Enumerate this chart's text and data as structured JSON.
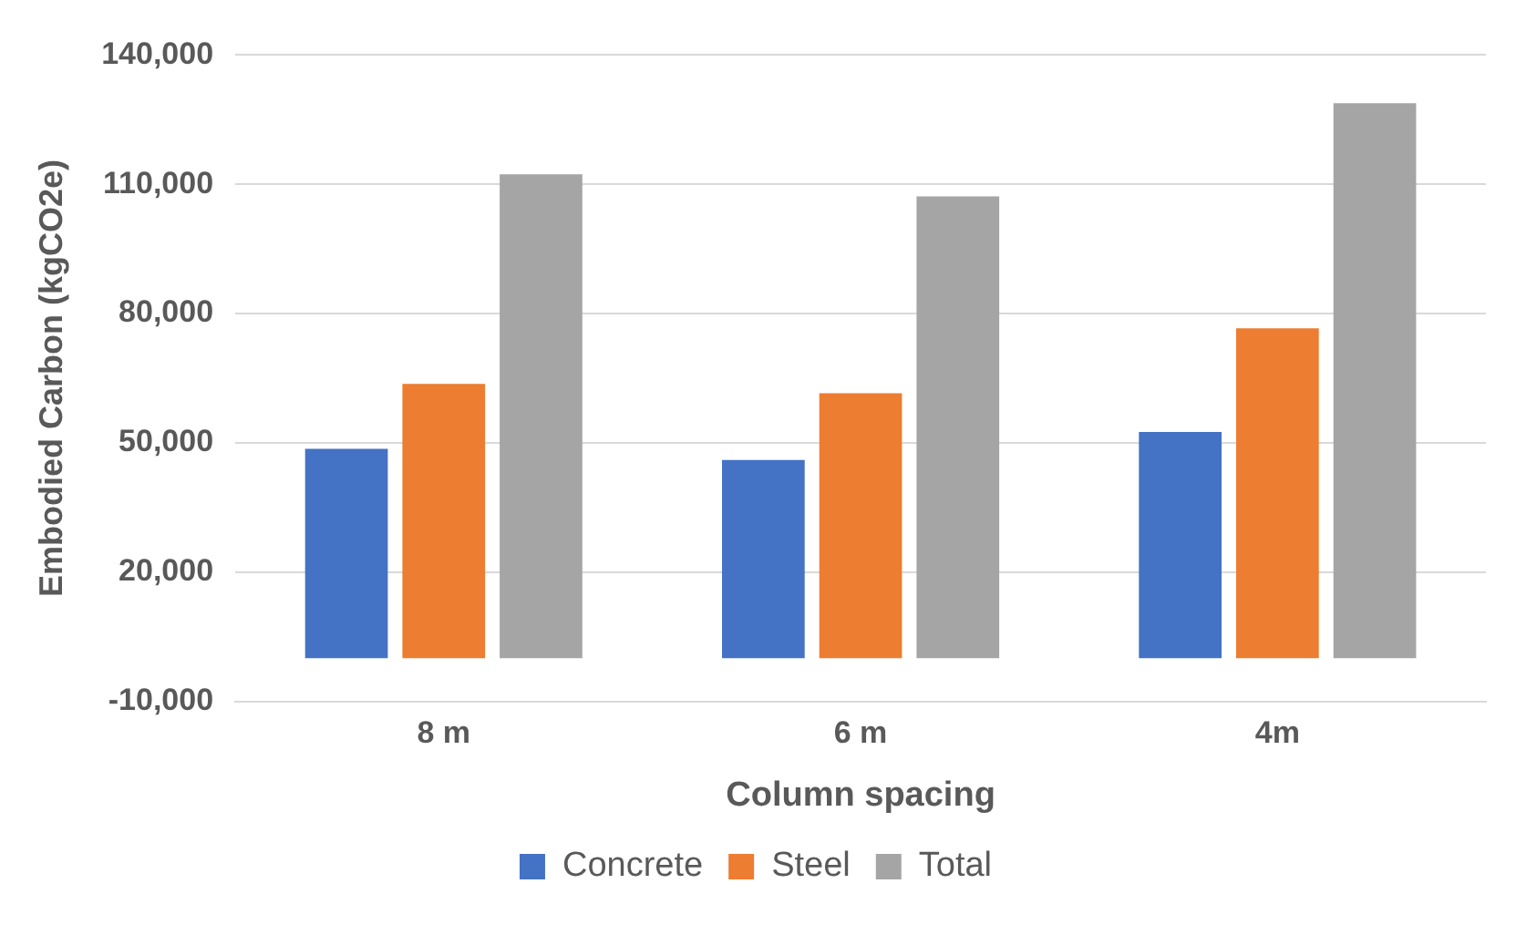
{
  "chart_data": {
    "type": "bar",
    "xlabel": "Column spacing",
    "ylabel": "Embodied Carbon (kgCO2e)",
    "categories": [
      "8 m",
      "6 m",
      "4m"
    ],
    "series": [
      {
        "name": "Concrete",
        "color": "#4472c4",
        "values": [
          48600,
          46000,
          52500
        ]
      },
      {
        "name": "Steel",
        "color": "#ed7d31",
        "values": [
          63700,
          61500,
          76600
        ]
      },
      {
        "name": "Total",
        "color": "#a5a5a5",
        "values": [
          112300,
          107200,
          128800
        ]
      }
    ],
    "ylim": [
      -10000,
      140000
    ],
    "yticks": [
      {
        "value": -10000,
        "label": "-10,000"
      },
      {
        "value": 20000,
        "label": "20,000"
      },
      {
        "value": 50000,
        "label": "50,000"
      },
      {
        "value": 80000,
        "label": "80,000"
      },
      {
        "value": 110000,
        "label": "110,000"
      },
      {
        "value": 140000,
        "label": "140,000"
      }
    ],
    "grid": "y",
    "legend": "bottom"
  }
}
